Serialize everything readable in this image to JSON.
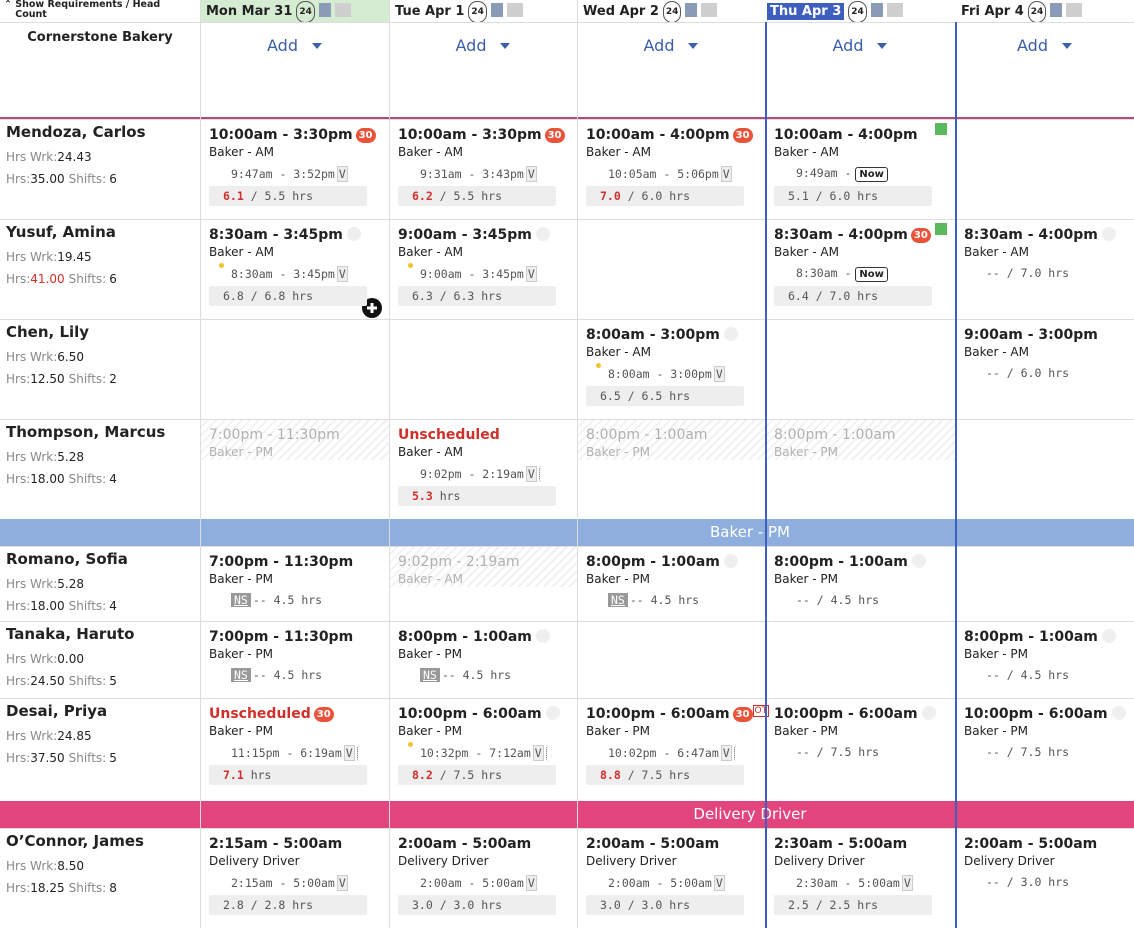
{
  "header": {
    "toggle": "Show Requirements / Head Count",
    "location": "Cornerstone Bakery",
    "add": "Add",
    "days": [
      {
        "label": "Mon Mar 31",
        "count": "24",
        "style": "published"
      },
      {
        "label": "Tue Apr 1",
        "count": "24"
      },
      {
        "label": "Wed Apr 2",
        "count": "24"
      },
      {
        "label": "Thu Apr 3",
        "count": "24",
        "style": "today"
      },
      {
        "label": "Fri Apr 4",
        "count": "24"
      }
    ]
  },
  "labels": {
    "hrs_wrk": "Hrs Wrk:",
    "hrs": "Hrs:",
    "shifts": "Shifts:"
  },
  "groups": [
    {
      "employees": [
        {
          "name": "Mendoza, Carlos",
          "hrs_wrk": "24.43",
          "hrs": "35.00",
          "shifts": "6",
          "cells": [
            {
              "shift": "10:00am - 3:30pm",
              "badge": "30",
              "role": "Baker - AM",
              "punch": "9:47am - 3:52pm",
              "punch_flag": "V",
              "actual": "6.1",
              "hours": " / 5.5 hrs"
            },
            {
              "shift": "10:00am - 3:30pm",
              "badge": "30",
              "role": "Baker - AM",
              "punch": "9:31am - 3:43pm",
              "punch_flag": "V",
              "actual": "6.2",
              "hours": " / 5.5 hrs"
            },
            {
              "shift": "10:00am - 4:00pm",
              "badge": "30",
              "role": "Baker - AM",
              "punch": "10:05am - 5:06pm",
              "punch_flag": "V",
              "actual": "7.0",
              "hours": " / 6.0 hrs"
            },
            {
              "shift": "10:00am - 4:00pm",
              "started": true,
              "role": "Baker - AM",
              "punch": "9:49am -",
              "now": "Now",
              "hours": "5.1 / 6.0 hrs"
            },
            null
          ]
        },
        {
          "name": "Yusuf, Amina",
          "hrs_wrk": "19.45",
          "hrs": "41.00",
          "hrs_alert": true,
          "shifts": "6",
          "cells": [
            {
              "shift": "8:30am - 3:45pm",
              "break_icon": true,
              "role": "Baker - AM",
              "dot": true,
              "punch": "8:30am - 3:45pm",
              "punch_flag": "V",
              "hours": "6.8 / 6.8 hrs"
            },
            {
              "shift": "9:00am - 3:45pm",
              "break_icon": true,
              "role": "Baker - AM",
              "dot": true,
              "punch": "9:00am - 3:45pm",
              "punch_flag": "V",
              "hours": "6.3 / 6.3 hrs"
            },
            null,
            {
              "shift": "8:30am - 4:00pm",
              "badge": "30",
              "started": true,
              "role": "Baker - AM",
              "punch": "8:30am -",
              "now": "Now",
              "hours": "6.4 / 7.0 hrs"
            },
            {
              "shift": "8:30am - 4:00pm",
              "break_icon": true,
              "role": "Baker - AM",
              "hours": "-- / 7.0 hrs"
            }
          ]
        },
        {
          "name": "Chen, Lily",
          "hrs_wrk": "6.50",
          "hrs": "12.50",
          "shifts": "2",
          "cells": [
            null,
            null,
            {
              "shift": "8:00am - 3:00pm",
              "break_icon": true,
              "role": "Baker - AM",
              "dot": true,
              "punch": "8:00am - 3:00pm",
              "punch_flag": "V",
              "hours": "6.5 / 6.5 hrs"
            },
            null,
            {
              "shift": "9:00am - 3:00pm",
              "role": "Baker - AM",
              "hours": "-- / 6.0 hrs"
            }
          ]
        },
        {
          "name": "Thompson, Marcus",
          "hrs_wrk": "5.28",
          "hrs": "18.00",
          "shifts": "4",
          "cells": [
            {
              "shift": "7:00pm - 11:30pm",
              "style": "ghost",
              "role": "Baker - PM"
            },
            {
              "shift": "Unscheduled",
              "style": "unscheduled",
              "role": "Baker - AM",
              "punch": "9:02pm - 2:19am",
              "punch_flag": "V",
              "squiggle": true,
              "actual": "5.3",
              "hours": " hrs"
            },
            {
              "shift": "8:00pm - 1:00am",
              "style": "ghost",
              "role": "Baker - PM"
            },
            {
              "shift": "8:00pm - 1:00am",
              "style": "ghost",
              "role": "Baker - PM"
            },
            null
          ]
        }
      ]
    },
    {
      "title": "Baker - PM",
      "color": "#8eafdd",
      "employees": [
        {
          "name": "Romano, Sofia",
          "hrs_wrk": "5.28",
          "hrs": "18.00",
          "shifts": "4",
          "cells": [
            {
              "shift": "7:00pm - 11:30pm",
              "role": "Baker - PM",
              "ns": "NS",
              "hours": "-- 4.5 hrs"
            },
            {
              "shift": "9:02pm - 2:19am",
              "style": "ghost",
              "role": "Baker - AM"
            },
            {
              "shift": "8:00pm - 1:00am",
              "break_icon": true,
              "role": "Baker - PM",
              "ns": "NS",
              "hours": "-- 4.5 hrs"
            },
            {
              "shift": "8:00pm - 1:00am",
              "break_icon": true,
              "role": "Baker - PM",
              "hours": "-- / 4.5 hrs"
            },
            null
          ]
        },
        {
          "name": "Tanaka, Haruto",
          "hrs_wrk": "0.00",
          "hrs": "24.50",
          "shifts": "5",
          "cells": [
            {
              "shift": "7:00pm - 11:30pm",
              "role": "Baker - PM",
              "ns": "NS",
              "hours": "-- 4.5 hrs"
            },
            {
              "shift": "8:00pm - 1:00am",
              "break_icon": true,
              "role": "Baker - PM",
              "ns": "NS",
              "hours": "-- 4.5 hrs"
            },
            null,
            null,
            {
              "shift": "8:00pm - 1:00am",
              "break_icon": true,
              "role": "Baker - PM",
              "hours": "-- / 4.5 hrs"
            }
          ]
        },
        {
          "name": "Desai, Priya",
          "hrs_wrk": "24.85",
          "hrs": "37.50",
          "shifts": "5",
          "cells": [
            {
              "shift": "Unscheduled",
              "style": "unscheduled",
              "badge": "30",
              "role": "Baker - PM",
              "punch": "11:15pm - 6:19am",
              "punch_flag": "V",
              "squiggle": true,
              "actual": "7.1",
              "hours": " hrs"
            },
            {
              "shift": "10:00pm - 6:00am",
              "break_icon": true,
              "role": "Baker - PM",
              "dot": true,
              "punch": "10:32pm - 7:12am",
              "punch_flag": "V",
              "squiggle": true,
              "actual": "8.2",
              "hours": " / 7.5 hrs"
            },
            {
              "shift": "10:00pm - 6:00am",
              "badge": "30",
              "ot": "OT",
              "role": "Baker - PM",
              "punch": "10:02pm - 6:47am",
              "punch_flag": "V",
              "squiggle": true,
              "actual": "8.8",
              "hours": " / 7.5 hrs"
            },
            {
              "shift": "10:00pm - 6:00am",
              "break_icon": true,
              "role": "Baker - PM",
              "hours": "-- / 7.5 hrs"
            },
            {
              "shift": "10:00pm - 6:00am",
              "break_icon": true,
              "role": "Baker - PM",
              "hours": "-- / 7.5 hrs"
            }
          ]
        }
      ]
    },
    {
      "title": "Delivery Driver",
      "color": "#e2457c",
      "employees": [
        {
          "name": "O’Connor, James",
          "hrs_wrk": "8.50",
          "hrs": "18.25",
          "shifts": "8",
          "cells": [
            {
              "shift": "2:15am - 5:00am",
              "role": "Delivery Driver",
              "punch": "2:15am - 5:00am",
              "punch_flag": "V",
              "hours": "2.8 / 2.8 hrs"
            },
            {
              "shift": "2:00am - 5:00am",
              "role": "Delivery Driver",
              "punch": "2:00am - 5:00am",
              "punch_flag": "V",
              "hours": "3.0 / 3.0 hrs"
            },
            {
              "shift": "2:00am - 5:00am",
              "role": "Delivery Driver",
              "punch": "2:00am - 5:00am",
              "punch_flag": "V",
              "hours": "3.0 / 3.0 hrs"
            },
            {
              "shift": "2:30am - 5:00am",
              "role": "Delivery Driver",
              "punch": "2:30am - 5:00am",
              "punch_flag": "V",
              "hours": "2.5 / 2.5 hrs"
            },
            {
              "shift": "2:00am - 5:00am",
              "role": "Delivery Driver",
              "hours": "-- / 3.0 hrs"
            }
          ]
        }
      ]
    }
  ]
}
